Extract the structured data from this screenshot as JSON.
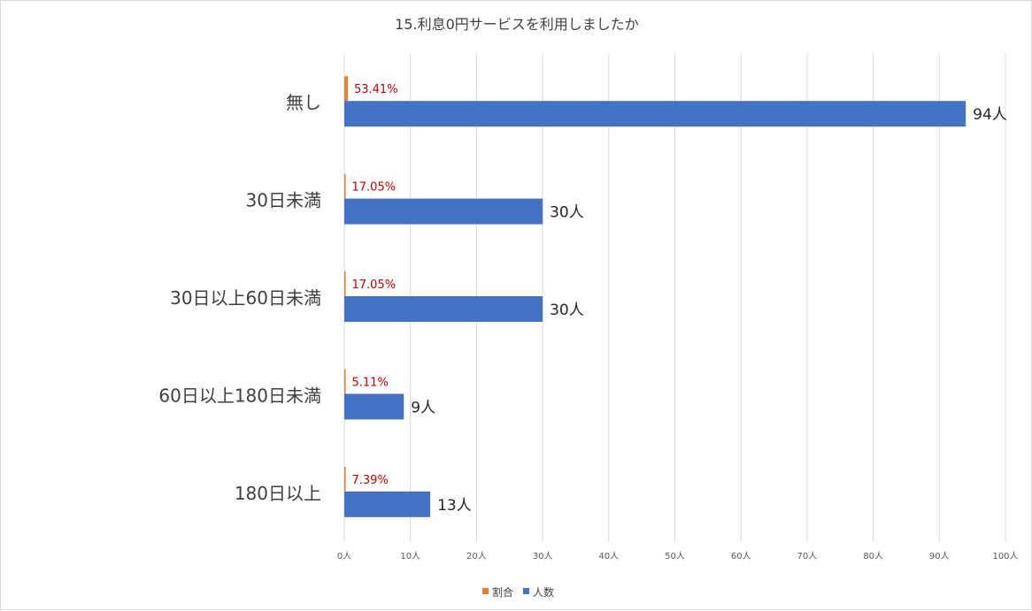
{
  "chart_data": {
    "type": "bar",
    "orientation": "horizontal",
    "title": "15.利息0円サービスを利用しましたか",
    "categories": [
      "無し",
      "30日未満",
      "30日以上60日未満",
      "60日以上180日未満",
      "180日以上"
    ],
    "series": [
      {
        "name": "割合",
        "color": "#ed7d31",
        "values": [
          53.41,
          17.05,
          17.05,
          5.11,
          7.39
        ],
        "labels": [
          "53.41%",
          "17.05%",
          "17.05%",
          "5.11%",
          "7.39%"
        ]
      },
      {
        "name": "人数",
        "color": "#4472c4",
        "values": [
          94,
          30,
          30,
          9,
          13
        ],
        "labels": [
          "94人",
          "30人",
          "30人",
          "9人",
          "13人"
        ]
      }
    ],
    "x_ticks": [
      "0人",
      "10人",
      "20人",
      "30人",
      "40人",
      "50人",
      "60人",
      "70人",
      "80人",
      "90人",
      "100人"
    ],
    "xlim": [
      0,
      100
    ],
    "grid": true,
    "legend_position": "bottom"
  }
}
